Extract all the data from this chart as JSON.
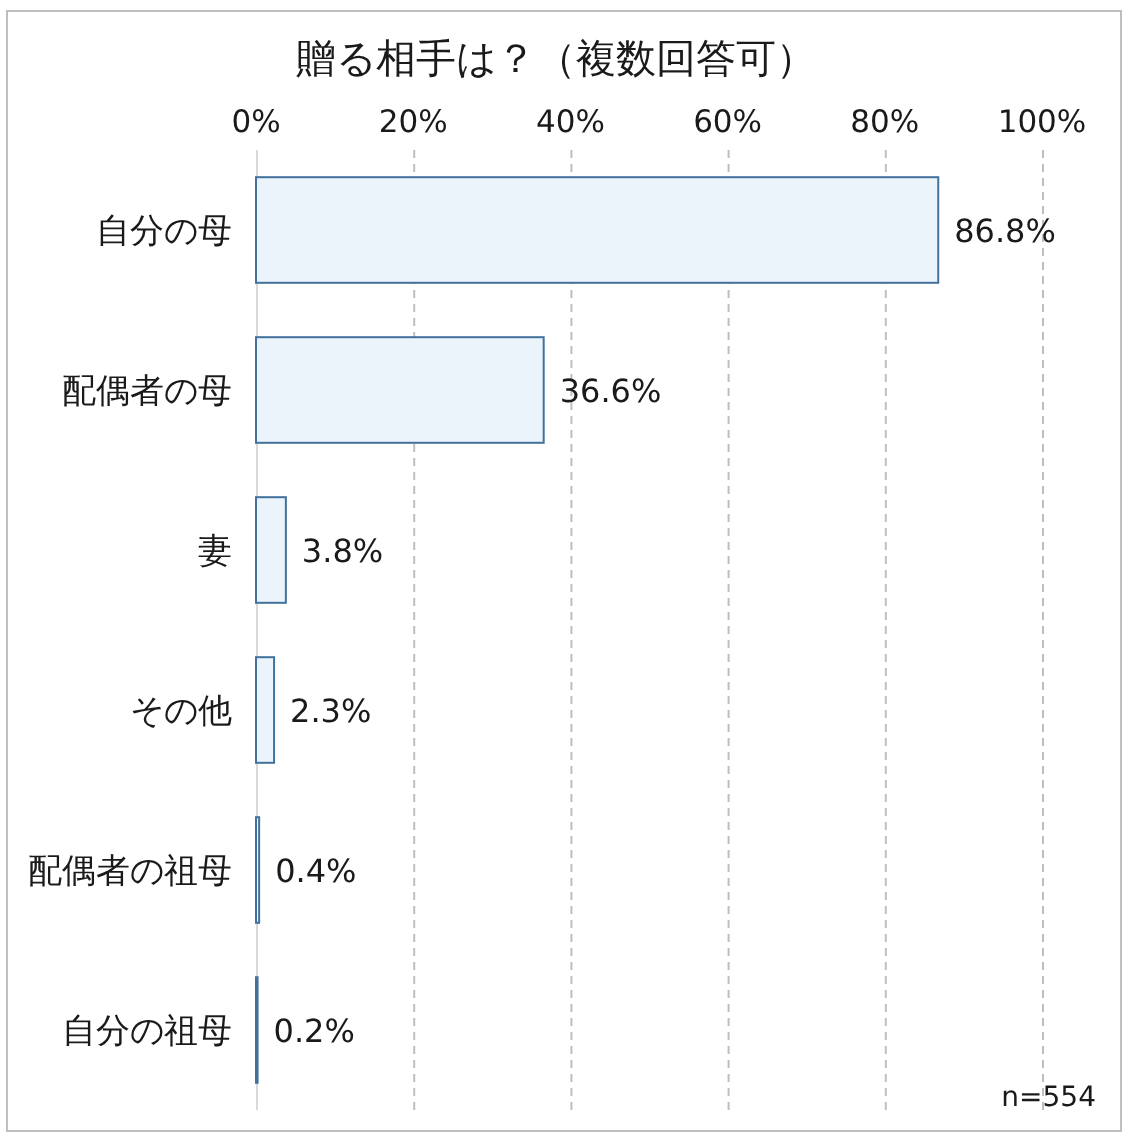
{
  "chart_data": {
    "type": "bar",
    "orientation": "horizontal",
    "title": "贈る相手は？（複数回答可）",
    "categories": [
      "自分の母",
      "配偶者の母",
      "妻",
      "その他",
      "配偶者の祖母",
      "自分の祖母"
    ],
    "values": [
      86.8,
      36.6,
      3.8,
      2.3,
      0.4,
      0.2
    ],
    "value_labels": [
      "86.8%",
      "36.6%",
      "3.8%",
      "2.3%",
      "0.4%",
      "0.2%"
    ],
    "color": "#ebf3fb",
    "xlim": [
      0,
      100
    ],
    "xticks": [
      {
        "value": 0,
        "label": "0%"
      },
      {
        "value": 20,
        "label": "20%"
      },
      {
        "value": 40,
        "label": "40%"
      },
      {
        "value": 60,
        "label": "60%"
      },
      {
        "value": 80,
        "label": "80%"
      },
      {
        "value": 100,
        "label": "100%"
      }
    ],
    "grid": "x",
    "annotations": [
      "n=554"
    ]
  }
}
